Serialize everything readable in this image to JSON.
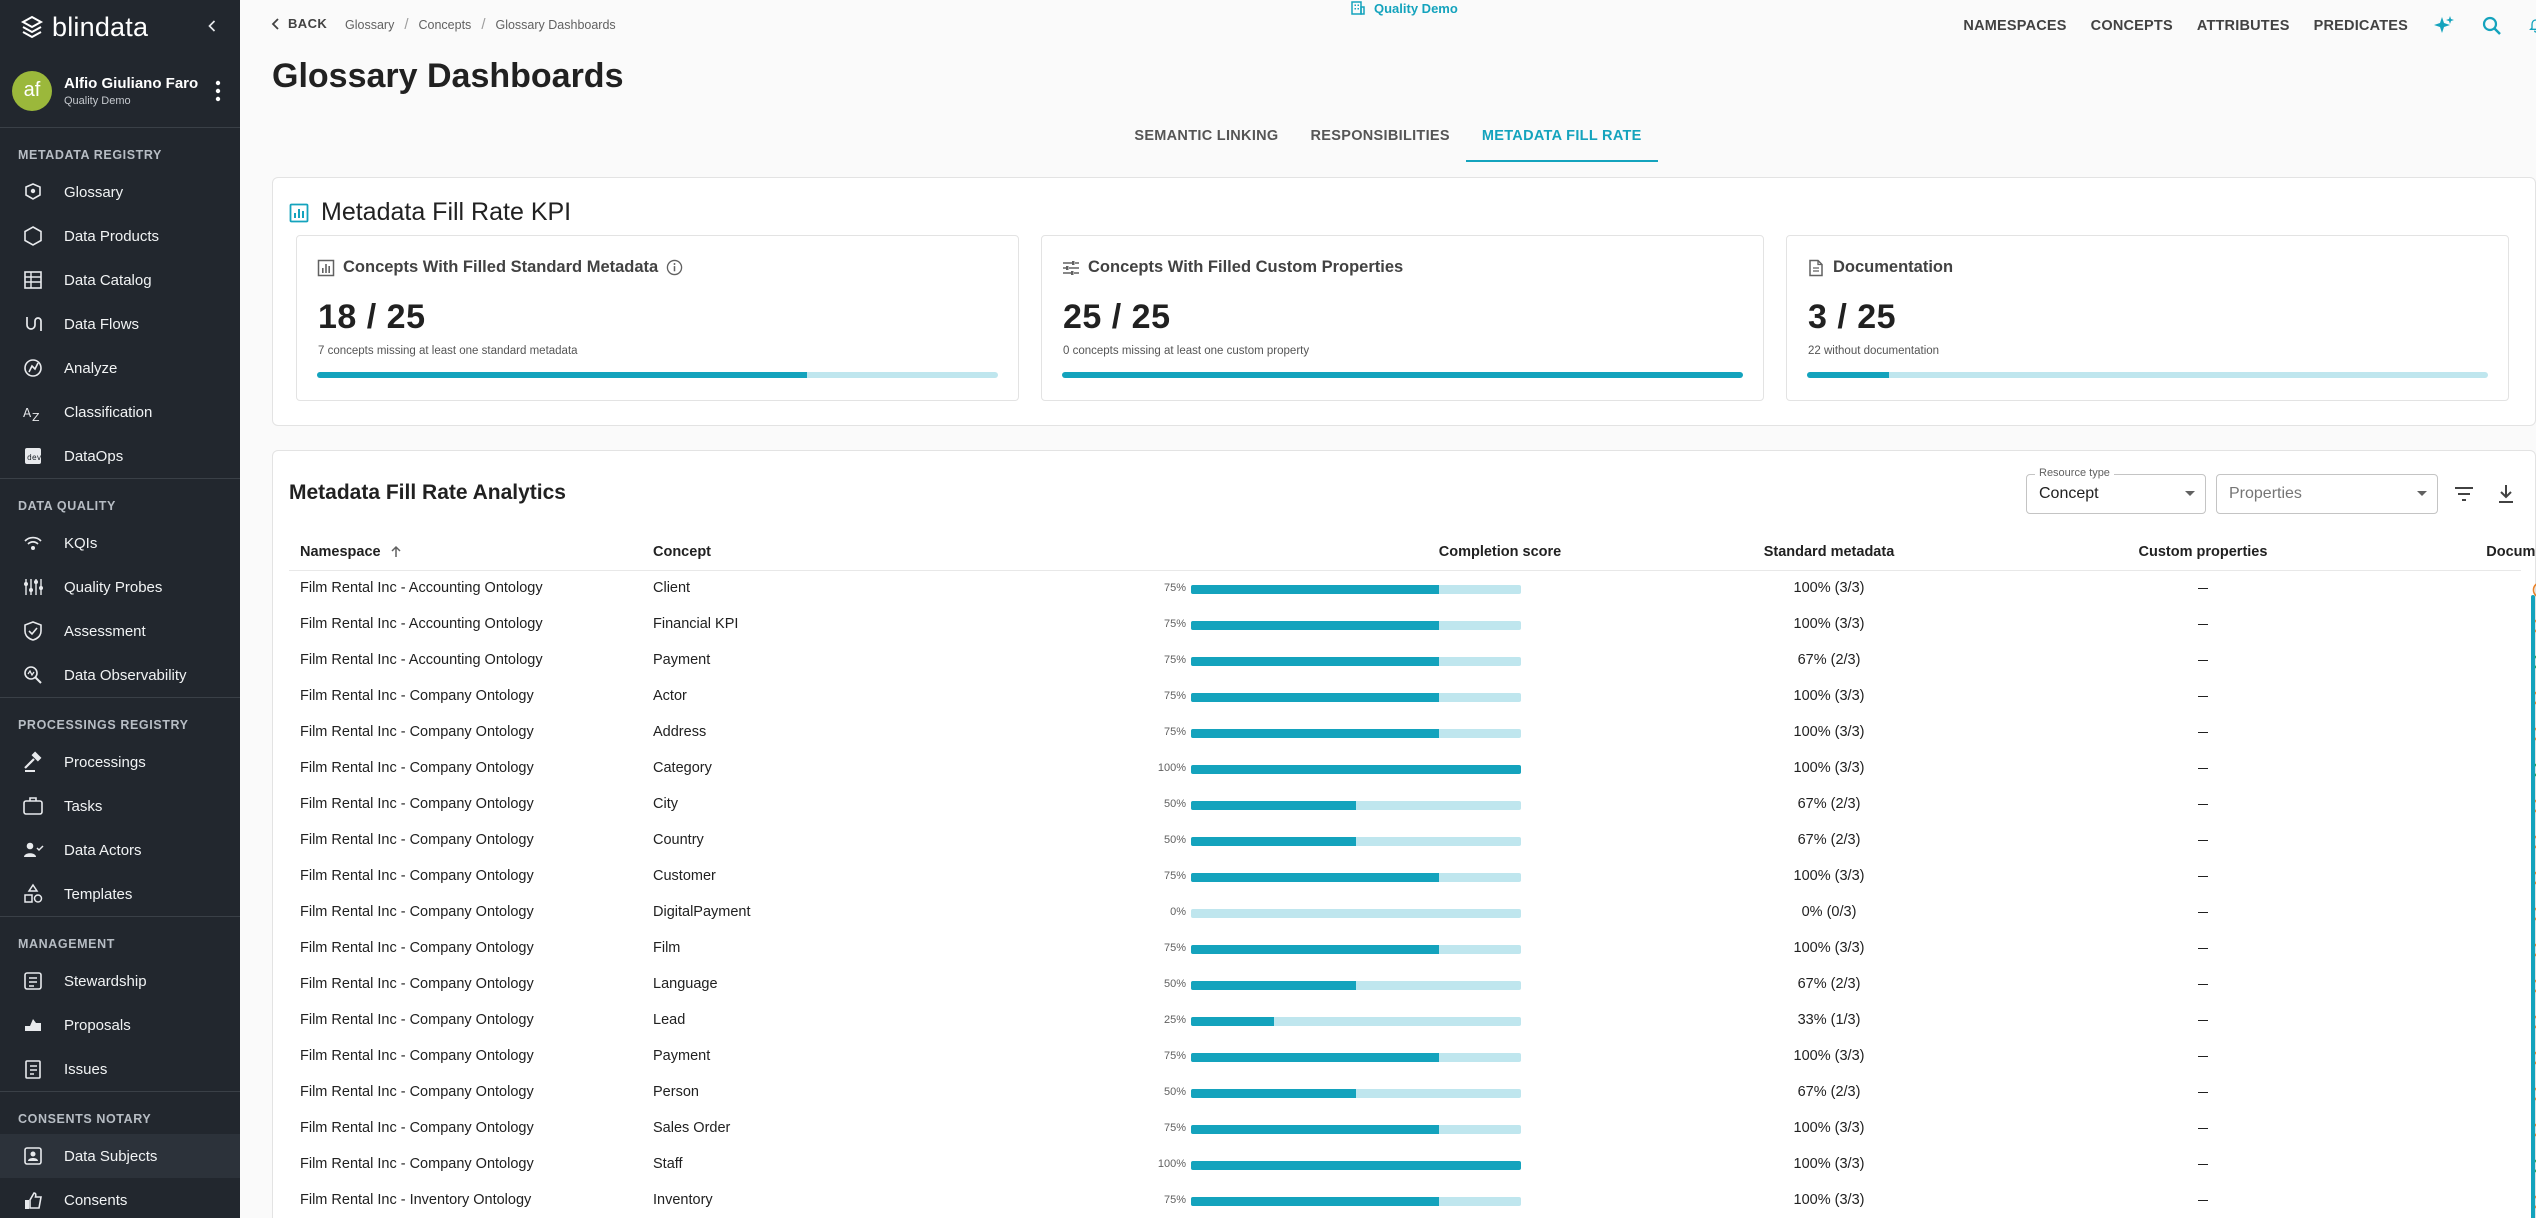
{
  "app": {
    "brand": "blindata",
    "user": {
      "initials": "af",
      "name": "Alfio Giuliano Faro",
      "org": "Quality Demo"
    }
  },
  "sidebar": {
    "sections": [
      {
        "header": "METADATA REGISTRY",
        "items": [
          {
            "label": "Glossary",
            "icon": "glossary-icon"
          },
          {
            "label": "Data Products",
            "icon": "data-products-icon"
          },
          {
            "label": "Data Catalog",
            "icon": "data-catalog-icon"
          },
          {
            "label": "Data Flows",
            "icon": "data-flows-icon"
          },
          {
            "label": "Analyze",
            "icon": "analyze-icon"
          },
          {
            "label": "Classification",
            "icon": "classification-icon"
          },
          {
            "label": "DataOps",
            "icon": "dataops-icon"
          }
        ]
      },
      {
        "header": "DATA QUALITY",
        "items": [
          {
            "label": "KQIs",
            "icon": "kqis-icon"
          },
          {
            "label": "Quality Probes",
            "icon": "quality-probes-icon"
          },
          {
            "label": "Assessment",
            "icon": "assessment-icon"
          },
          {
            "label": "Data Observability",
            "icon": "data-observability-icon"
          }
        ]
      },
      {
        "header": "PROCESSINGS REGISTRY",
        "items": [
          {
            "label": "Processings",
            "icon": "processings-icon"
          },
          {
            "label": "Tasks",
            "icon": "tasks-icon"
          },
          {
            "label": "Data Actors",
            "icon": "data-actors-icon"
          },
          {
            "label": "Templates",
            "icon": "templates-icon"
          }
        ]
      },
      {
        "header": "MANAGEMENT",
        "items": [
          {
            "label": "Stewardship",
            "icon": "stewardship-icon"
          },
          {
            "label": "Proposals",
            "icon": "proposals-icon"
          },
          {
            "label": "Issues",
            "icon": "issues-icon"
          }
        ]
      },
      {
        "header": "CONSENTS NOTARY",
        "items": [
          {
            "label": "Data Subjects",
            "icon": "data-subjects-icon"
          },
          {
            "label": "Consents",
            "icon": "consents-icon"
          }
        ]
      }
    ]
  },
  "topbar": {
    "back_label": "BACK",
    "breadcrumbs": [
      "Glossary",
      "Concepts",
      "Glossary Dashboards"
    ],
    "tenant": "Quality Demo",
    "links": [
      "NAMESPACES",
      "CONCEPTS",
      "ATTRIBUTES",
      "PREDICATES"
    ]
  },
  "page": {
    "title": "Glossary Dashboards"
  },
  "tabs": [
    {
      "label": "SEMANTIC LINKING",
      "active": false
    },
    {
      "label": "RESPONSIBILITIES",
      "active": false
    },
    {
      "label": "METADATA FILL RATE",
      "active": true
    }
  ],
  "kpi": {
    "title": "Metadata Fill Rate KPI",
    "cards": [
      {
        "title": "Concepts With Filled Standard Metadata",
        "value": "18 / 25",
        "caption": "7 concepts missing at least one standard metadata",
        "fill": 0.72
      },
      {
        "title": "Concepts With Filled Custom Properties",
        "value": "25 / 25",
        "caption": "0 concepts missing at least one custom property",
        "fill": 1.0
      },
      {
        "title": "Documentation",
        "value": "3 / 25",
        "caption": "22 without documentation",
        "fill": 0.12
      }
    ]
  },
  "analytics": {
    "title": "Metadata Fill Rate Analytics",
    "resource_type": {
      "label": "Resource type",
      "value": "Concept"
    },
    "properties": {
      "placeholder": "Properties"
    },
    "columns": [
      "Namespace",
      "Concept",
      "Completion score",
      "Standard metadata",
      "Custom properties",
      "Documentation"
    ],
    "rows": [
      {
        "namespace": "Film Rental Inc - Accounting Ontology",
        "concept": "Client",
        "score_label": "75%",
        "score": 75,
        "standard": "100% (3/3)",
        "custom": "",
        "doc": "missing"
      },
      {
        "namespace": "Film Rental Inc - Accounting Ontology",
        "concept": "Financial KPI",
        "score_label": "75%",
        "score": 75,
        "standard": "100% (3/3)",
        "custom": "",
        "doc": "missing"
      },
      {
        "namespace": "Film Rental Inc - Accounting Ontology",
        "concept": "Payment",
        "score_label": "75%",
        "score": 75,
        "standard": "67% (2/3)",
        "custom": "",
        "doc": "present"
      },
      {
        "namespace": "Film Rental Inc - Company Ontology",
        "concept": "Actor",
        "score_label": "75%",
        "score": 75,
        "standard": "100% (3/3)",
        "custom": "",
        "doc": "missing"
      },
      {
        "namespace": "Film Rental Inc - Company Ontology",
        "concept": "Address",
        "score_label": "75%",
        "score": 75,
        "standard": "100% (3/3)",
        "custom": "",
        "doc": "missing"
      },
      {
        "namespace": "Film Rental Inc - Company Ontology",
        "concept": "Category",
        "score_label": "100%",
        "score": 100,
        "standard": "100% (3/3)",
        "custom": "",
        "doc": "present"
      },
      {
        "namespace": "Film Rental Inc - Company Ontology",
        "concept": "City",
        "score_label": "50%",
        "score": 50,
        "standard": "67% (2/3)",
        "custom": "",
        "doc": "missing"
      },
      {
        "namespace": "Film Rental Inc - Company Ontology",
        "concept": "Country",
        "score_label": "50%",
        "score": 50,
        "standard": "67% (2/3)",
        "custom": "",
        "doc": "missing"
      },
      {
        "namespace": "Film Rental Inc - Company Ontology",
        "concept": "Customer",
        "score_label": "75%",
        "score": 75,
        "standard": "100% (3/3)",
        "custom": "",
        "doc": "missing"
      },
      {
        "namespace": "Film Rental Inc - Company Ontology",
        "concept": "DigitalPayment",
        "score_label": "0%",
        "score": 0,
        "standard": "0% (0/3)",
        "custom": "",
        "doc": "missing"
      },
      {
        "namespace": "Film Rental Inc - Company Ontology",
        "concept": "Film",
        "score_label": "75%",
        "score": 75,
        "standard": "100% (3/3)",
        "custom": "",
        "doc": "missing"
      },
      {
        "namespace": "Film Rental Inc - Company Ontology",
        "concept": "Language",
        "score_label": "50%",
        "score": 50,
        "standard": "67% (2/3)",
        "custom": "",
        "doc": "missing"
      },
      {
        "namespace": "Film Rental Inc - Company Ontology",
        "concept": "Lead",
        "score_label": "25%",
        "score": 25,
        "standard": "33% (1/3)",
        "custom": "",
        "doc": "missing"
      },
      {
        "namespace": "Film Rental Inc - Company Ontology",
        "concept": "Payment",
        "score_label": "75%",
        "score": 75,
        "standard": "100% (3/3)",
        "custom": "",
        "doc": "missing"
      },
      {
        "namespace": "Film Rental Inc - Company Ontology",
        "concept": "Person",
        "score_label": "50%",
        "score": 50,
        "standard": "67% (2/3)",
        "custom": "",
        "doc": "missing"
      },
      {
        "namespace": "Film Rental Inc - Company Ontology",
        "concept": "Sales Order",
        "score_label": "75%",
        "score": 75,
        "standard": "100% (3/3)",
        "custom": "",
        "doc": "missing"
      },
      {
        "namespace": "Film Rental Inc - Company Ontology",
        "concept": "Staff",
        "score_label": "100%",
        "score": 100,
        "standard": "100% (3/3)",
        "custom": "",
        "doc": "present"
      },
      {
        "namespace": "Film Rental Inc - Inventory Ontology",
        "concept": "Inventory",
        "score_label": "75%",
        "score": 75,
        "standard": "100% (3/3)",
        "custom": "",
        "doc": "missing"
      }
    ]
  },
  "colors": {
    "accent": "#14a3bd",
    "accent_light": "#bfe6ee",
    "ok": "#2e9e4f",
    "missing": "#e8822a",
    "sidebar": "#22272e"
  }
}
